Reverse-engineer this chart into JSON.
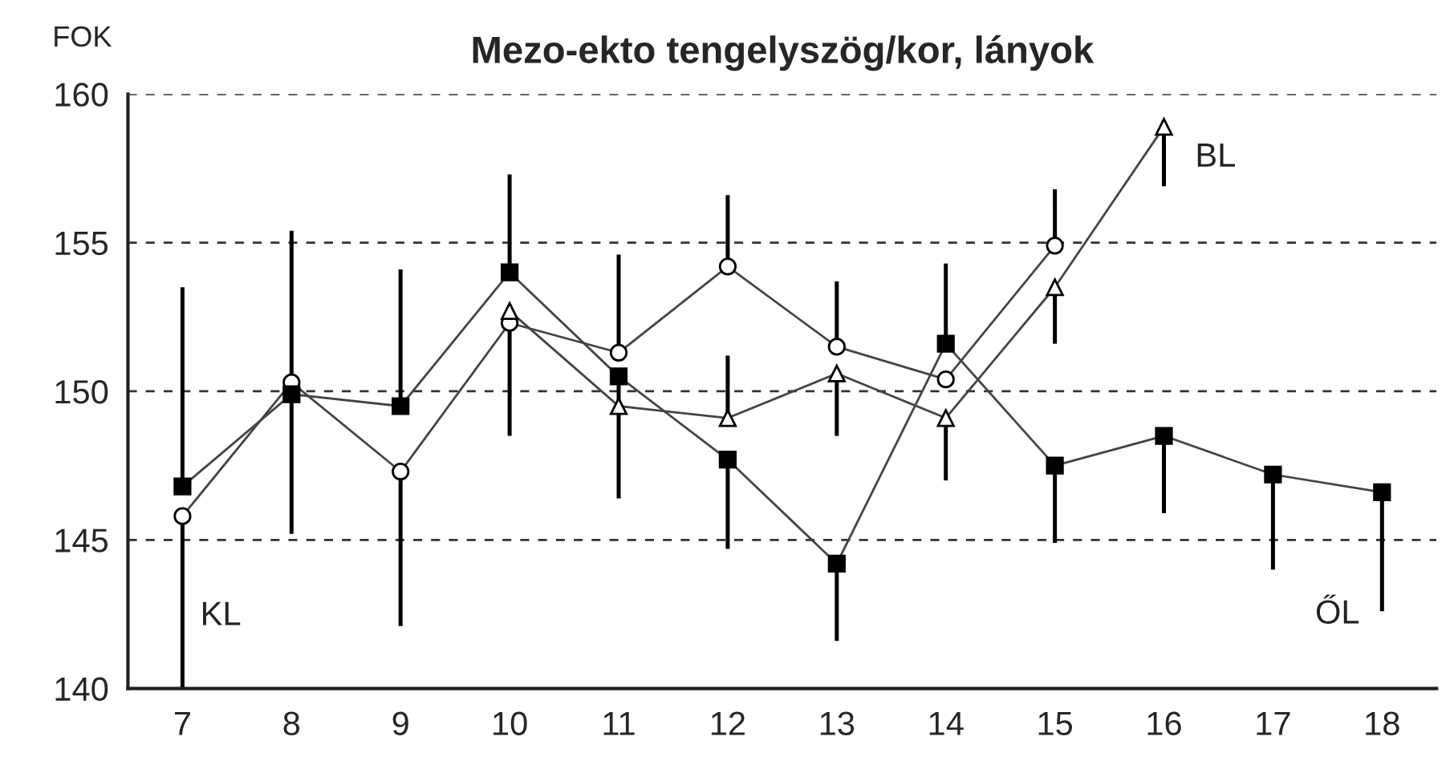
{
  "chart_data": {
    "type": "line",
    "title": "Mezo-ekto tengelyszög/kor, lányok",
    "ylabel": "FOK",
    "categories": [
      "7",
      "8",
      "9",
      "10",
      "11",
      "12",
      "13",
      "14",
      "15",
      "16",
      "17",
      "18"
    ],
    "ylim": [
      140,
      160
    ],
    "yticks": [
      140,
      145,
      150,
      155,
      160
    ],
    "grid": "y",
    "legend": false,
    "series": [
      {
        "name": "KL",
        "color": "#000000",
        "marker": "circle",
        "values": [
          145.8,
          150.3,
          147.3,
          152.3,
          151.3,
          154.2,
          151.5,
          150.4,
          154.9,
          null,
          null,
          null
        ],
        "errors": [
          [
            140,
            145.8
          ],
          [
            145.2,
            150.3
          ],
          [
            142.1,
            147.3
          ],
          [
            148.5,
            152.3
          ],
          [
            151.3,
            154.6
          ],
          [
            154.2,
            156.6
          ],
          [
            151.5,
            153.7
          ],
          null,
          [
            154.9,
            156.8
          ],
          null,
          null,
          null
        ]
      },
      {
        "name": "BL",
        "color": "#000000",
        "marker": "triangle",
        "values": [
          null,
          null,
          null,
          152.7,
          149.5,
          149.1,
          150.6,
          149.1,
          153.5,
          158.9,
          null,
          null
        ],
        "errors": [
          null,
          null,
          null,
          null,
          null,
          [
            149.1,
            151.2
          ],
          [
            148.5,
            150.6
          ],
          [
            147.0,
            149.1
          ],
          [
            151.6,
            153.5
          ],
          [
            156.9,
            158.9
          ],
          null,
          null
        ]
      },
      {
        "name": "ŐL",
        "color": "#000000",
        "marker": "square",
        "values": [
          146.8,
          149.9,
          149.5,
          154.0,
          150.5,
          147.7,
          144.2,
          151.6,
          147.5,
          148.5,
          147.2,
          146.6
        ],
        "errors": [
          [
            146.8,
            153.5
          ],
          [
            149.9,
            155.4
          ],
          [
            149.5,
            154.1
          ],
          [
            154.0,
            157.3
          ],
          [
            146.4,
            150.5
          ],
          [
            144.7,
            147.7
          ],
          [
            141.6,
            144.2
          ],
          [
            151.6,
            154.3
          ],
          [
            144.9,
            147.5
          ],
          [
            145.9,
            148.5
          ],
          [
            144.0,
            147.2
          ],
          [
            142.6,
            146.6
          ]
        ]
      }
    ]
  }
}
